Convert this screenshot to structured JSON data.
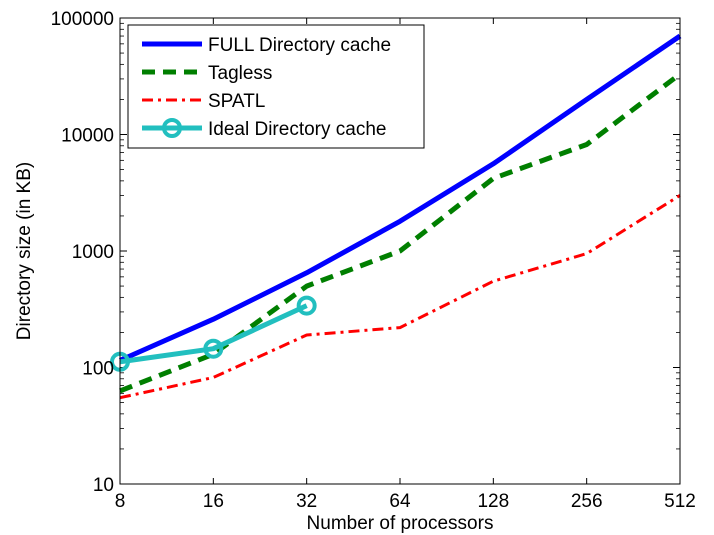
{
  "chart_data": {
    "type": "line",
    "xlabel": "Number of processors",
    "ylabel": "Directory size (in KB)",
    "x": [
      8,
      16,
      32,
      64,
      128,
      256,
      512
    ],
    "x_scale": "log2",
    "y_scale": "log10",
    "xlim": [
      8,
      512
    ],
    "ylim": [
      10,
      100000
    ],
    "xticks": [
      "8",
      "16",
      "32",
      "64",
      "128",
      "256",
      "512"
    ],
    "yticks": [
      "10",
      "100",
      "1000",
      "10000",
      "100000"
    ],
    "grid": false,
    "legend_position": "top-left",
    "series": [
      {
        "name": "FULL Directory cache",
        "color": "#0000ff",
        "style": "solid",
        "x": [
          8,
          16,
          32,
          64,
          128,
          256,
          512
        ],
        "values": [
          115,
          260,
          650,
          1800,
          5600,
          20000,
          70000
        ]
      },
      {
        "name": "Tagless",
        "color": "#007f00",
        "style": "dashed",
        "x": [
          8,
          16,
          32,
          64,
          128,
          256,
          512
        ],
        "values": [
          63,
          130,
          500,
          1000,
          4200,
          8200,
          33000
        ]
      },
      {
        "name": "SPATL",
        "color": "#ff0000",
        "style": "dashdot",
        "x": [
          8,
          16,
          32,
          64,
          128,
          256,
          512
        ],
        "values": [
          55,
          82,
          190,
          220,
          550,
          950,
          3000
        ]
      },
      {
        "name": "Ideal Directory cache",
        "color": "#22bfbf",
        "style": "solid-marker",
        "x": [
          8,
          16,
          32
        ],
        "values": [
          112,
          145,
          340
        ]
      }
    ]
  }
}
